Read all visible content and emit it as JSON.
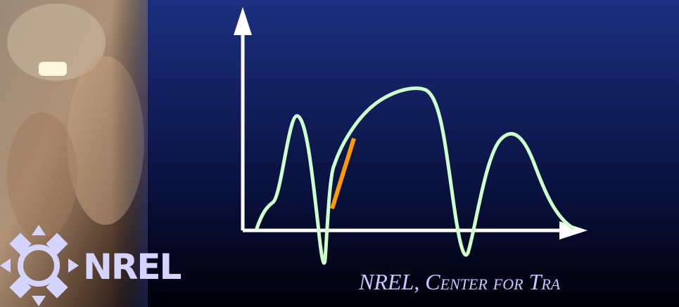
{
  "logo": {
    "text": "NREL"
  },
  "footer": {
    "text": "NREL, Center for Tra"
  }
}
